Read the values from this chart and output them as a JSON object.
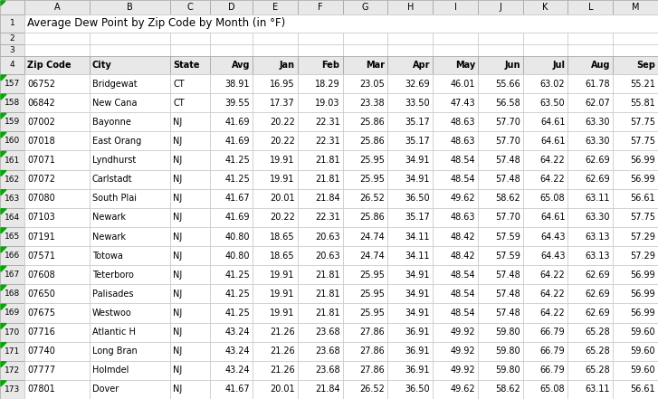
{
  "title": "Average Dew Point by Zip Code by Month (in °F)",
  "headers": [
    "Zip Code",
    "City",
    "State",
    "Avg",
    "Jan",
    "Feb",
    "Mar",
    "Apr",
    "May",
    "Jun",
    "Jul",
    "Aug",
    "Sep"
  ],
  "row_numbers": [
    157,
    158,
    159,
    160,
    161,
    162,
    163,
    164,
    165,
    166,
    167,
    168,
    169,
    170,
    171,
    172,
    173
  ],
  "rows": [
    [
      "06752",
      "Bridgewat",
      "CT",
      "38.91",
      "16.95",
      "18.29",
      "23.05",
      "32.69",
      "46.01",
      "55.66",
      "63.02",
      "61.78",
      "55.21"
    ],
    [
      "06842",
      "New Cana",
      "CT",
      "39.55",
      "17.37",
      "19.03",
      "23.38",
      "33.50",
      "47.43",
      "56.58",
      "63.50",
      "62.07",
      "55.81"
    ],
    [
      "07002",
      "Bayonne",
      "NJ",
      "41.69",
      "20.22",
      "22.31",
      "25.86",
      "35.17",
      "48.63",
      "57.70",
      "64.61",
      "63.30",
      "57.75"
    ],
    [
      "07018",
      "East Orang",
      "NJ",
      "41.69",
      "20.22",
      "22.31",
      "25.86",
      "35.17",
      "48.63",
      "57.70",
      "64.61",
      "63.30",
      "57.75"
    ],
    [
      "07071",
      "Lyndhurst",
      "NJ",
      "41.25",
      "19.91",
      "21.81",
      "25.95",
      "34.91",
      "48.54",
      "57.48",
      "64.22",
      "62.69",
      "56.99"
    ],
    [
      "07072",
      "Carlstadt",
      "NJ",
      "41.25",
      "19.91",
      "21.81",
      "25.95",
      "34.91",
      "48.54",
      "57.48",
      "64.22",
      "62.69",
      "56.99"
    ],
    [
      "07080",
      "South Plai",
      "NJ",
      "41.67",
      "20.01",
      "21.84",
      "26.52",
      "36.50",
      "49.62",
      "58.62",
      "65.08",
      "63.11",
      "56.61"
    ],
    [
      "07103",
      "Newark",
      "NJ",
      "41.69",
      "20.22",
      "22.31",
      "25.86",
      "35.17",
      "48.63",
      "57.70",
      "64.61",
      "63.30",
      "57.75"
    ],
    [
      "07191",
      "Newark",
      "NJ",
      "40.80",
      "18.65",
      "20.63",
      "24.74",
      "34.11",
      "48.42",
      "57.59",
      "64.43",
      "63.13",
      "57.29"
    ],
    [
      "07571",
      "Totowa",
      "NJ",
      "40.80",
      "18.65",
      "20.63",
      "24.74",
      "34.11",
      "48.42",
      "57.59",
      "64.43",
      "63.13",
      "57.29"
    ],
    [
      "07608",
      "Teterboro",
      "NJ",
      "41.25",
      "19.91",
      "21.81",
      "25.95",
      "34.91",
      "48.54",
      "57.48",
      "64.22",
      "62.69",
      "56.99"
    ],
    [
      "07650",
      "Palisades",
      "NJ",
      "41.25",
      "19.91",
      "21.81",
      "25.95",
      "34.91",
      "48.54",
      "57.48",
      "64.22",
      "62.69",
      "56.99"
    ],
    [
      "07675",
      "Westwoo",
      "NJ",
      "41.25",
      "19.91",
      "21.81",
      "25.95",
      "34.91",
      "48.54",
      "57.48",
      "64.22",
      "62.69",
      "56.99"
    ],
    [
      "07716",
      "Atlantic H",
      "NJ",
      "43.24",
      "21.26",
      "23.68",
      "27.86",
      "36.91",
      "49.92",
      "59.80",
      "66.79",
      "65.28",
      "59.60"
    ],
    [
      "07740",
      "Long Bran",
      "NJ",
      "43.24",
      "21.26",
      "23.68",
      "27.86",
      "36.91",
      "49.92",
      "59.80",
      "66.79",
      "65.28",
      "59.60"
    ],
    [
      "07777",
      "Holmdel",
      "NJ",
      "43.24",
      "21.26",
      "23.68",
      "27.86",
      "36.91",
      "49.92",
      "59.80",
      "66.79",
      "65.28",
      "59.60"
    ],
    [
      "07801",
      "Dover",
      "NJ",
      "41.67",
      "20.01",
      "21.84",
      "26.52",
      "36.50",
      "49.62",
      "58.62",
      "65.08",
      "63.11",
      "56.61"
    ]
  ],
  "col_letters": [
    "A",
    "B",
    "C",
    "D",
    "E",
    "F",
    "G",
    "H",
    "I",
    "J",
    "K",
    "L",
    "M"
  ],
  "row_header_color": "#e8e8e8",
  "col_header_color": "#e8e8e8",
  "data_bg_color": "#ffffff",
  "title_row_color": "#ffffff",
  "green_triangle_color": "#00aa00",
  "font_size": 7.0,
  "header_font_size": 7.0,
  "title_font_size": 8.5,
  "fig_width": 7.27,
  "fig_height": 4.41,
  "dpi": 100
}
